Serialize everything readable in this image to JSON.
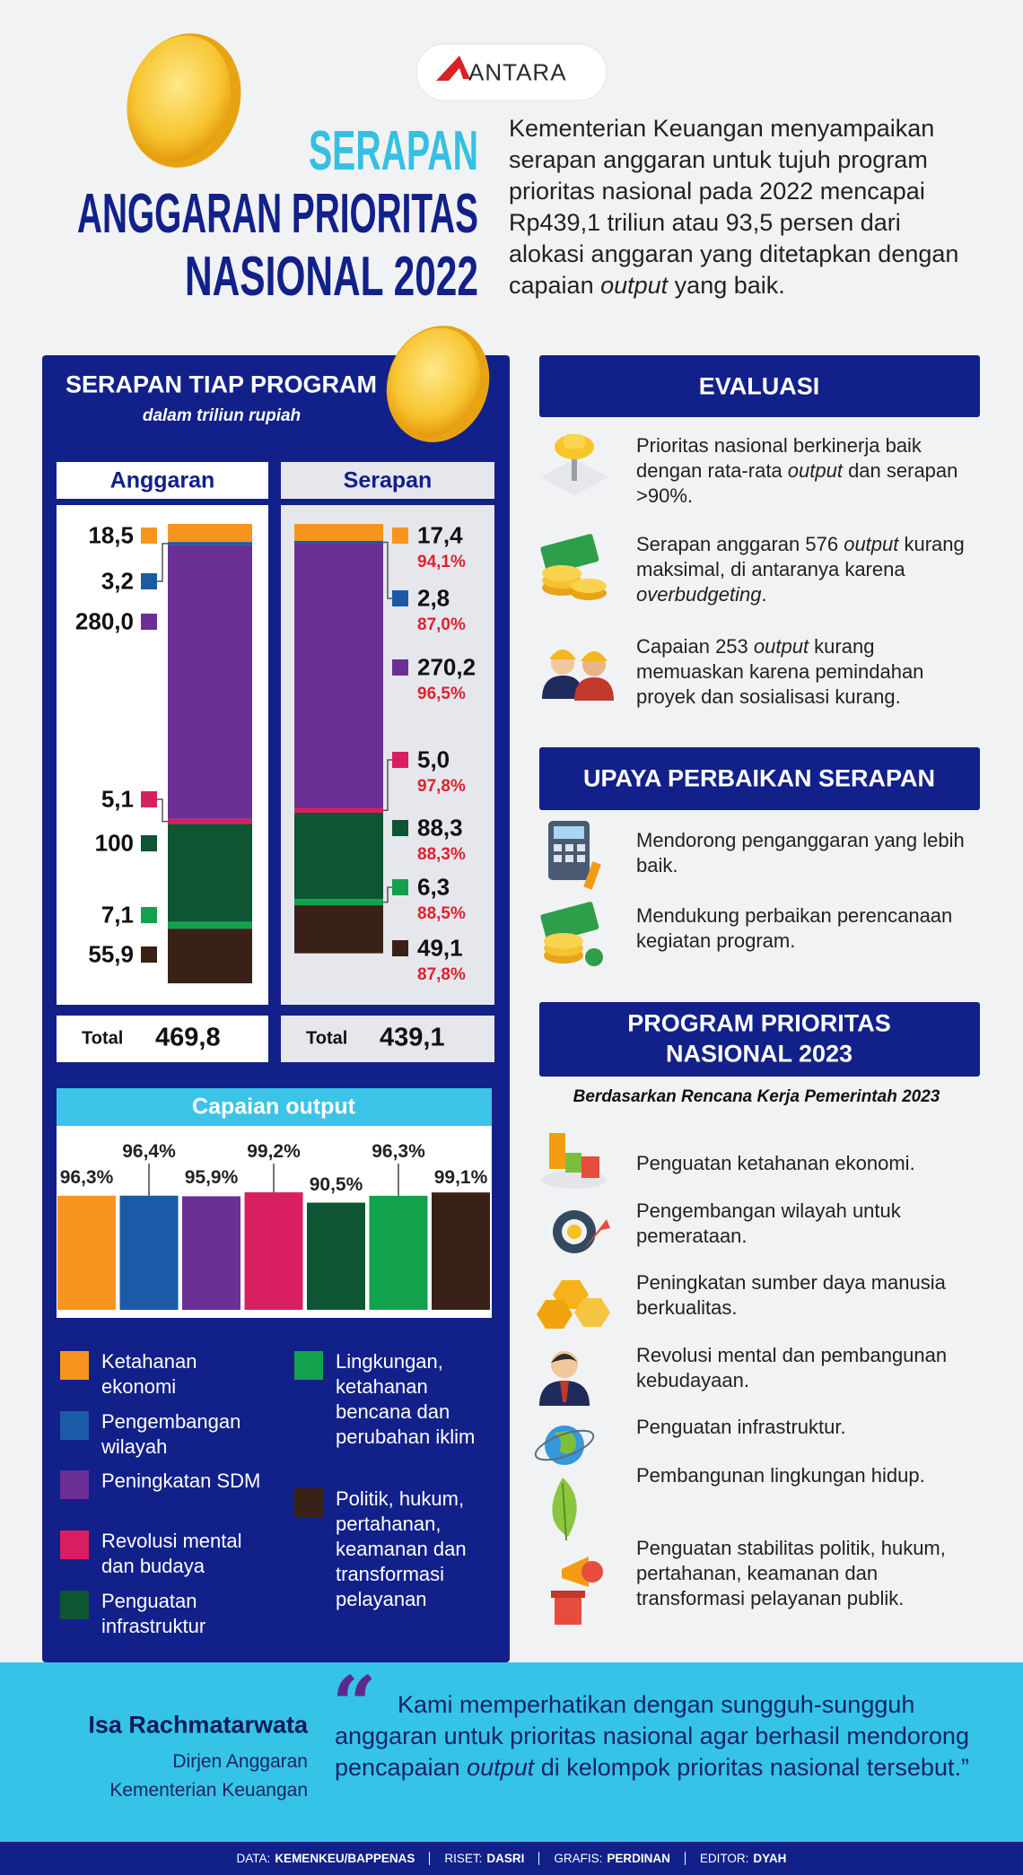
{
  "header": {
    "logo": "ANTARA",
    "title": [
      "SERAPAN",
      "ANGGARAN PRIORITAS",
      "NASIONAL 2022"
    ],
    "intro": [
      "Kementerian Keuangan menyampaikan serapan anggaran untuk tujuh program prioritas nasional pada 2022 mencapai Rp439,1 triliun atau 93,5 persen dari alokasi anggaran yang ditetapkan dengan capaian ",
      "output",
      " yang baik."
    ]
  },
  "programs": [
    {
      "name": "Ketahanan ekonomi",
      "color": "#f7941d"
    },
    {
      "name": "Pengembangan wilayah",
      "color": "#1b5aa6"
    },
    {
      "name": "Peningkatan SDM",
      "color": "#6b2f95"
    },
    {
      "name": "Revolusi mental dan budaya",
      "color": "#d81f62"
    },
    {
      "name": "Penguatan infrastruktur",
      "color": "#0d5533"
    },
    {
      "name": "Lingkungan, ketahanan bencana dan perubahan iklim",
      "color": "#12a24c"
    },
    {
      "name": "Politik, hukum, pertahanan, keamanan dan transformasi pelayanan",
      "color": "#3a2117"
    }
  ],
  "absorption": {
    "title": "SERAPAN TIAP PROGRAM",
    "subtitle": "dalam triliun rupiah",
    "budget": {
      "header": "Anggaran",
      "values": [
        18.5,
        3.2,
        280.0,
        5.1,
        100,
        7.1,
        55.9
      ],
      "value_labels": [
        "18,5",
        "3,2",
        "280,0",
        "5,1",
        "100",
        "7,1",
        "55,9"
      ],
      "total": {
        "label": "Total",
        "value": 469.8,
        "value_label": "469,8"
      }
    },
    "realized": {
      "header": "Serapan",
      "values": [
        17.4,
        2.8,
        270.2,
        5.0,
        88.3,
        6.3,
        49.1
      ],
      "value_labels": [
        "17,4",
        "2,8",
        "270,2",
        "5,0",
        "88,3",
        "6,3",
        "49,1"
      ],
      "percents": [
        94.1,
        87.0,
        96.5,
        97.8,
        88.3,
        88.5,
        87.8
      ],
      "percent_labels": [
        "94,1%",
        "87,0%",
        "96,5%",
        "97,8%",
        "88,3%",
        "88,5%",
        "87,8%"
      ],
      "total": {
        "label": "Total",
        "value": 439.1,
        "value_label": "439,1"
      }
    }
  },
  "output": {
    "title": "Capaian output",
    "values": [
      96.3,
      96.4,
      95.9,
      99.2,
      90.5,
      96.3,
      99.1
    ],
    "value_labels": [
      "96,3%",
      "96,4%",
      "95,9%",
      "99,2%",
      "90,5%",
      "96,3%",
      "99,1%"
    ]
  },
  "evaluation": {
    "title": "EVALUASI",
    "items": [
      [
        "Prioritas nasional berkinerja baik dengan rata-rata ",
        "output",
        " dan serapan >90%."
      ],
      [
        "Serapan anggaran 576 ",
        "output",
        " kurang maksimal, di antaranya karena ",
        "overbudgeting",
        "."
      ],
      [
        "Capaian 253 ",
        "output",
        " kurang memuaskan karena pemindahan proyek dan sosialisasi kurang."
      ]
    ]
  },
  "improvement": {
    "title": "UPAYA PERBAIKAN SERAPAN",
    "items": [
      "Mendorong penganggaran yang lebih baik.",
      "Mendukung perbaikan perencanaan kegiatan program."
    ]
  },
  "priorities_2023": {
    "title": [
      "PROGRAM PRIORITAS",
      "NASIONAL 2023"
    ],
    "subtitle": "Berdasarkan Rencana Kerja Pemerintah 2023",
    "items": [
      "Penguatan ketahanan ekonomi.",
      "Pengembangan wilayah untuk pemerataan.",
      "Peningkatan sumber daya manusia berkualitas.",
      "Revolusi mental dan pembangunan kebudayaan.",
      "Penguatan infrastruktur.",
      "Pembangunan lingkungan hidup.",
      "Penguatan stabilitas politik, hukum, pertahanan, keamanan dan transformasi pelayanan publik."
    ]
  },
  "quote": {
    "name": "Isa Rachmatarwata",
    "role": [
      "Dirjen Anggaran",
      "Kementerian Keuangan"
    ],
    "mark": "“",
    "text": [
      "Kami memperhatikan dengan sungguh-sungguh anggaran untuk prioritas nasional agar berhasil mendorong pencapaian ",
      "output",
      " di kelompok prioritas nasional tersebut.”"
    ]
  },
  "credits": [
    {
      "label": "DATA:",
      "value": "KEMENKEU/BAPPENAS"
    },
    {
      "label": "RISET:",
      "value": "DASRI"
    },
    {
      "label": "GRAFIS:",
      "value": "PERDINAN"
    },
    {
      "label": "EDITOR:",
      "value": "DYAH"
    }
  ]
}
